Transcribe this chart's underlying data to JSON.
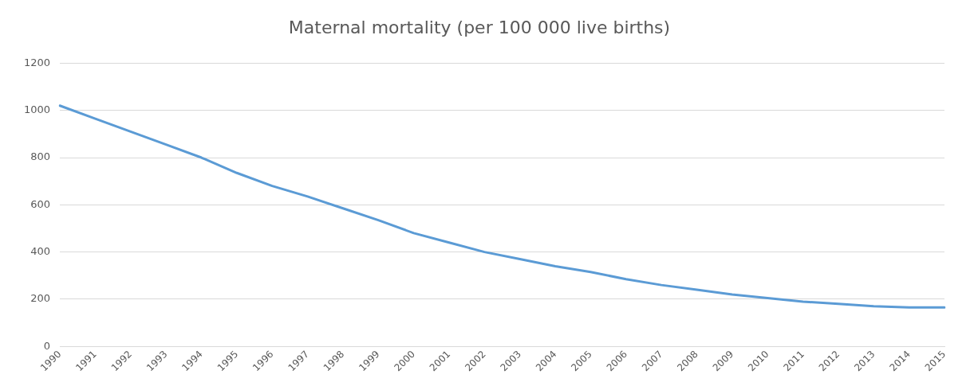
{
  "chart_data": {
    "type": "line",
    "title": "Maternal mortality (per 100 000 live births)",
    "categories": [
      "1990",
      "1991",
      "1992",
      "1993",
      "1994",
      "1995",
      "1996",
      "1997",
      "1998",
      "1999",
      "2000",
      "2001",
      "2002",
      "2003",
      "2004",
      "2005",
      "2006",
      "2007",
      "2008",
      "2009",
      "2010",
      "2011",
      "2012",
      "2013",
      "2014",
      "2015"
    ],
    "series": [
      {
        "color": "#5b9bd5",
        "values": [
          1020,
          965,
          910,
          855,
          800,
          735,
          680,
          635,
          585,
          535,
          480,
          440,
          400,
          370,
          340,
          315,
          285,
          260,
          240,
          220,
          205,
          190,
          180,
          170,
          165,
          165
        ]
      }
    ],
    "ylim": [
      0,
      1200
    ],
    "yticks": [
      0,
      200,
      400,
      600,
      800,
      1000,
      1200
    ],
    "grid": "y",
    "legend": false,
    "marker": "none",
    "line_style": "solid"
  }
}
